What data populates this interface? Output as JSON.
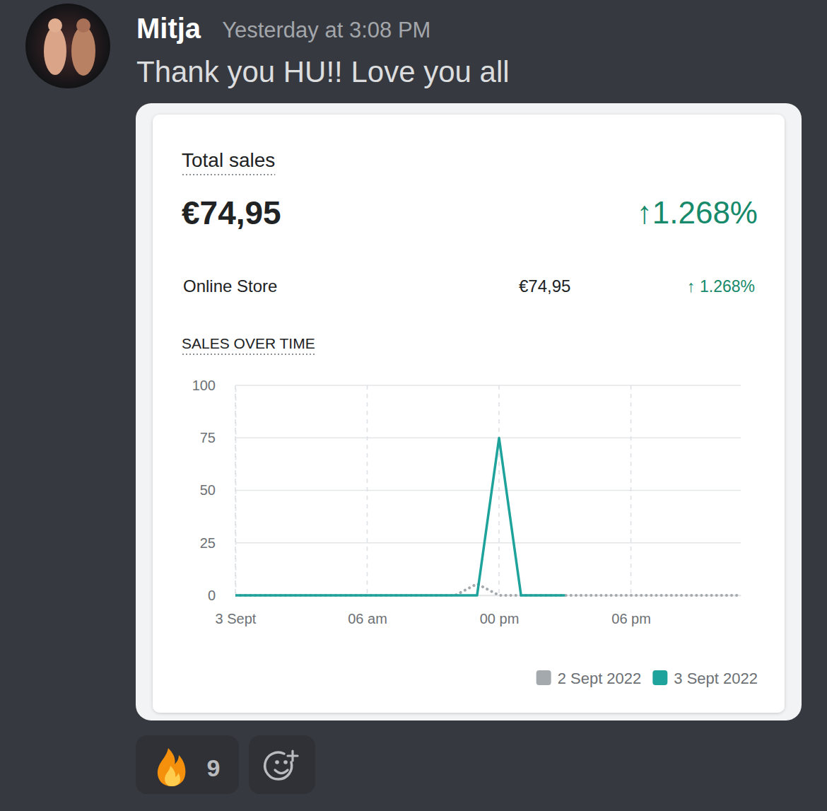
{
  "message": {
    "author": "Mitja",
    "timestamp": "Yesterday at 3:08 PM",
    "text": "Thank you HU!! Love you all",
    "reactions": [
      {
        "count": 9
      }
    ]
  },
  "card": {
    "title": "Total sales",
    "total": "€74,95",
    "change": "↑1.268%",
    "rows": [
      {
        "label": "Online Store",
        "value": "€74,95",
        "change": "↑ 1.268%"
      }
    ]
  },
  "chart_data": {
    "type": "line",
    "title": "SALES OVER TIME",
    "x": [
      0,
      1,
      2,
      3,
      4,
      5,
      6,
      7,
      8,
      9,
      10,
      11,
      12,
      13,
      14,
      15,
      16,
      17,
      18,
      19,
      20,
      21,
      22,
      23
    ],
    "xlim": [
      0,
      23
    ],
    "xticks": [
      {
        "value": 0,
        "label": "3 Sept"
      },
      {
        "value": 6,
        "label": "06 am"
      },
      {
        "value": 12,
        "label": "00 pm"
      },
      {
        "value": 18,
        "label": "06 pm"
      }
    ],
    "ylim": [
      0,
      100
    ],
    "yticks": [
      0,
      25,
      50,
      75,
      100
    ],
    "grid": true,
    "legend": "bottom right",
    "series": [
      {
        "name": "2 Sept 2022",
        "color": "#a4a9ad",
        "line_style": "dotted",
        "values": [
          0,
          0,
          0,
          0,
          0,
          0,
          0,
          0,
          0,
          0,
          0,
          5.48,
          0,
          0,
          0,
          0,
          0,
          0,
          0,
          0,
          0,
          0,
          0,
          0
        ]
      },
      {
        "name": "3 Sept 2022",
        "color": "#1ea39c",
        "line_style": "solid",
        "values": [
          0,
          0,
          0,
          0,
          0,
          0,
          0,
          0,
          0,
          0,
          0,
          0,
          74.95,
          0,
          0,
          0,
          null,
          null,
          null,
          null,
          null,
          null,
          null,
          null
        ]
      }
    ]
  }
}
